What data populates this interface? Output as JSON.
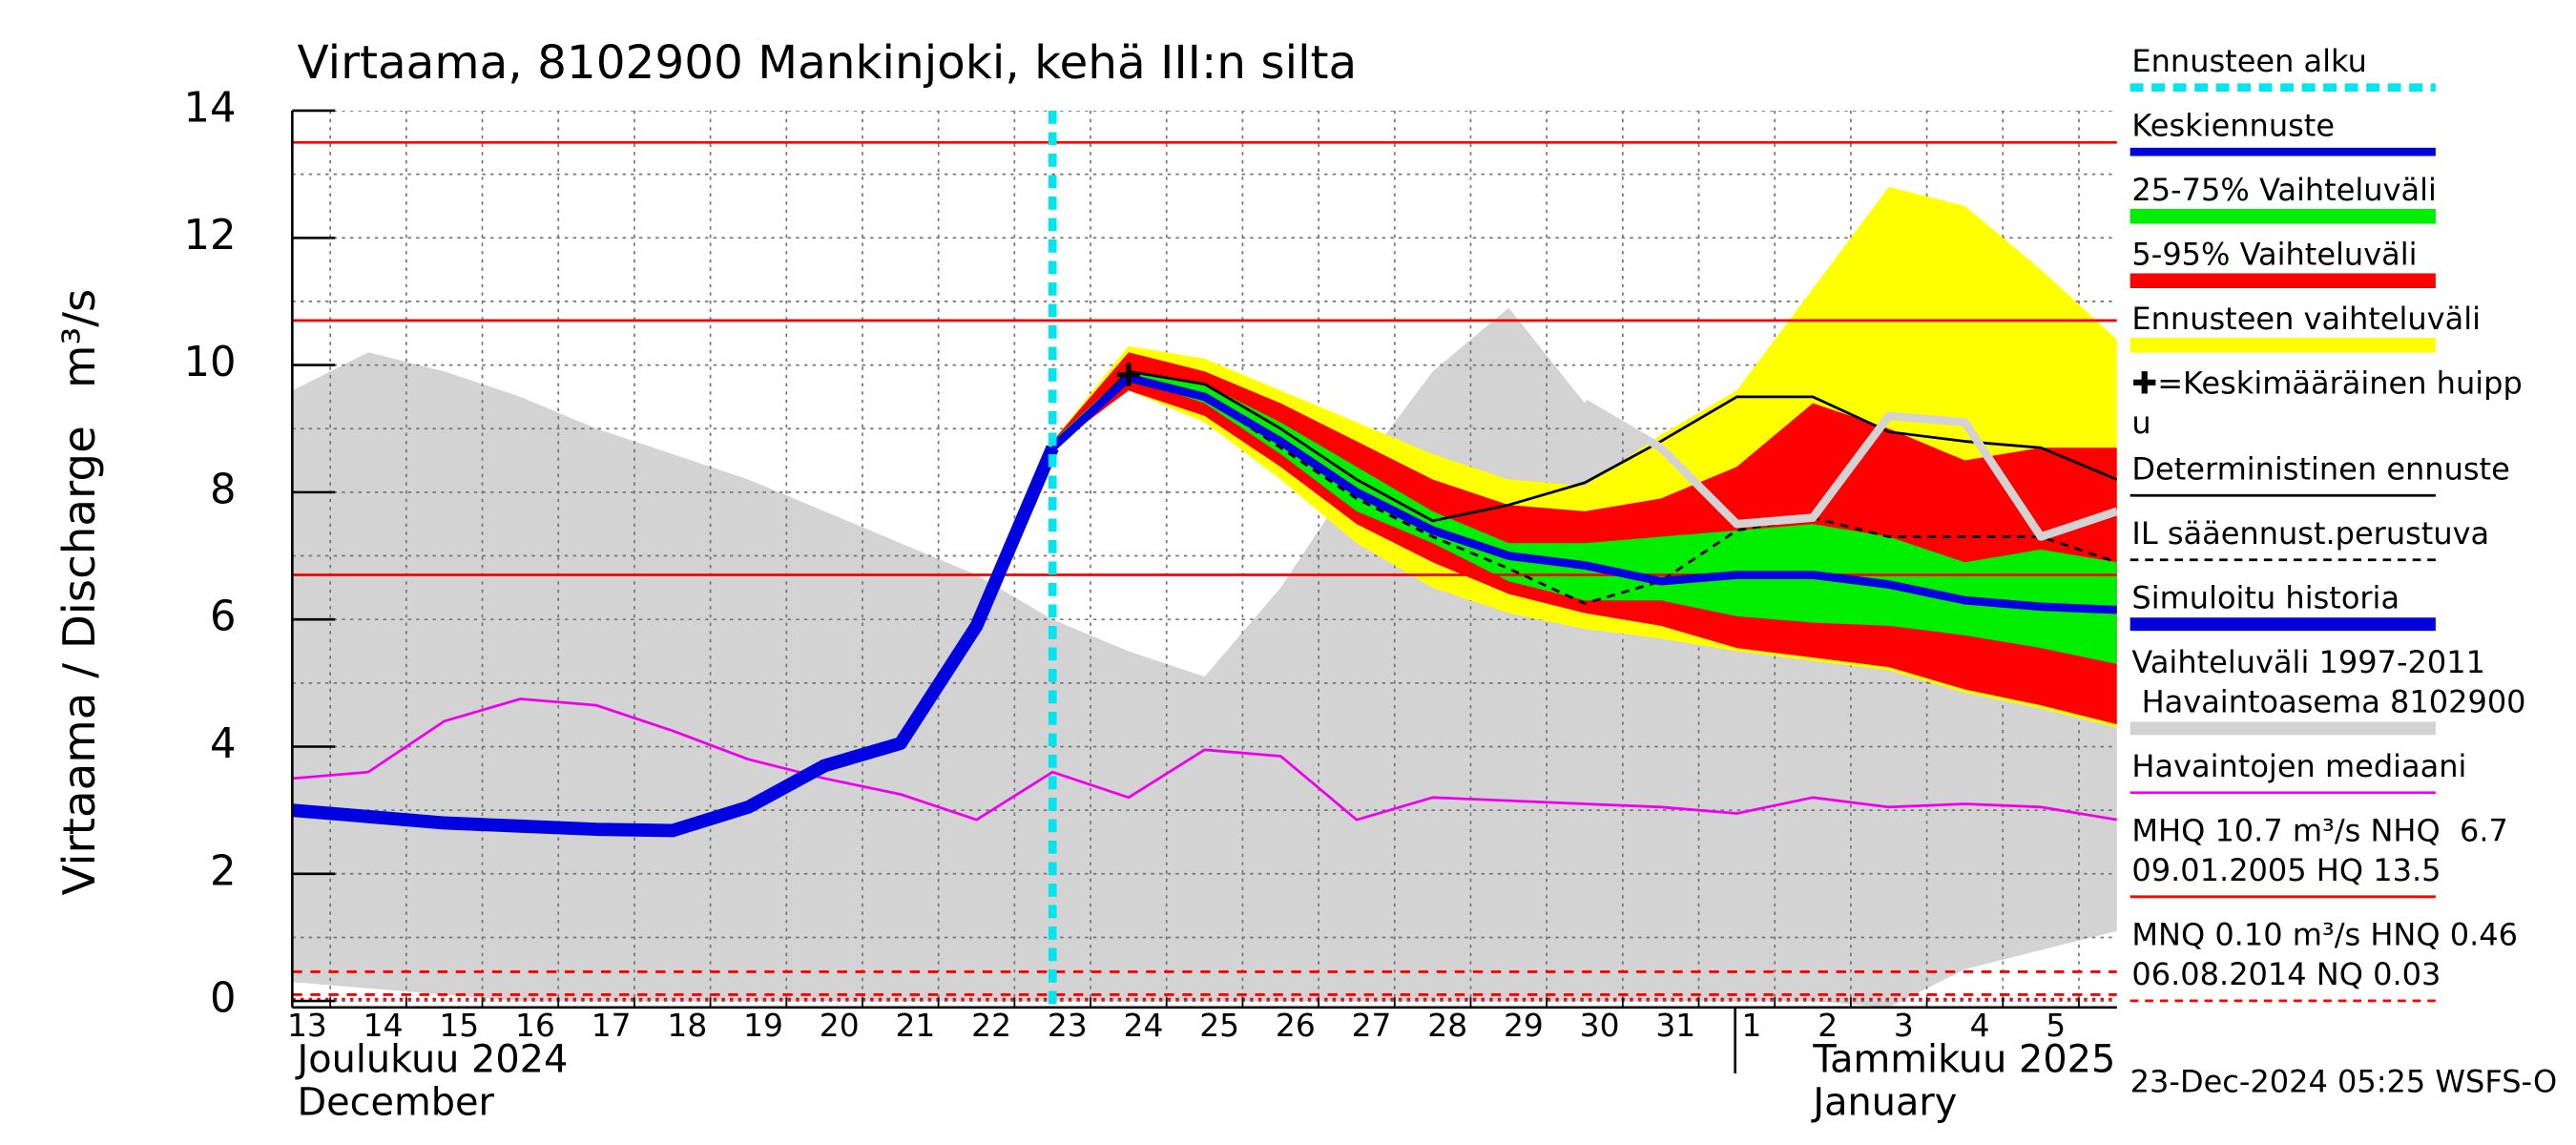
{
  "chart_data": {
    "type": "line",
    "title": "Virtaama, 8102900 Mankinjoki, kehä III:n silta",
    "y_label": "Virtaama / Discharge",
    "y_unit": "m³/s",
    "month_labels": [
      "Joulukuu  2024",
      "December",
      "Tammikuu  2025",
      "January"
    ],
    "footer": "23-Dec-2024 05:25 WSFS-O",
    "x": [
      0,
      1,
      2,
      3,
      4,
      5,
      6,
      7,
      8,
      9,
      10,
      11,
      12,
      13,
      14,
      15,
      16,
      17,
      18,
      19,
      20,
      21,
      22,
      23,
      24
    ],
    "xlim": [
      0,
      24
    ],
    "xticks": [
      {
        "value": 0,
        "label": "13"
      },
      {
        "value": 1,
        "label": "14"
      },
      {
        "value": 2,
        "label": "15"
      },
      {
        "value": 3,
        "label": "16"
      },
      {
        "value": 4,
        "label": "17"
      },
      {
        "value": 5,
        "label": "18"
      },
      {
        "value": 6,
        "label": "19"
      },
      {
        "value": 7,
        "label": "20"
      },
      {
        "value": 8,
        "label": "21"
      },
      {
        "value": 9,
        "label": "22"
      },
      {
        "value": 10,
        "label": "23"
      },
      {
        "value": 11,
        "label": "24"
      },
      {
        "value": 12,
        "label": "25"
      },
      {
        "value": 13,
        "label": "26"
      },
      {
        "value": 14,
        "label": "27"
      },
      {
        "value": 15,
        "label": "28"
      },
      {
        "value": 16,
        "label": "29"
      },
      {
        "value": 17,
        "label": "30"
      },
      {
        "value": 18,
        "label": "31"
      },
      {
        "value": 19,
        "label": "1"
      },
      {
        "value": 20,
        "label": "2"
      },
      {
        "value": 21,
        "label": "3"
      },
      {
        "value": 22,
        "label": "4"
      },
      {
        "value": 23,
        "label": "5"
      }
    ],
    "month_break_x": 19,
    "ylim": [
      -0.1,
      14
    ],
    "yticks": [
      0,
      2,
      4,
      6,
      8,
      10,
      12,
      14
    ],
    "yminor": [
      1,
      3,
      5,
      7,
      9,
      11,
      13
    ],
    "grid": true,
    "forecast_start_x": 10,
    "forecast_start_color": "#00e5ee",
    "reference_lines": [
      {
        "value": 13.5,
        "style": "solid",
        "color": "#ff0000"
      },
      {
        "value": 10.7,
        "style": "solid",
        "color": "#ff0000"
      },
      {
        "value": 6.7,
        "style": "solid",
        "color": "#ff0000"
      },
      {
        "value": 0.46,
        "style": "dashed",
        "color": "#ff0000"
      },
      {
        "value": 0.1,
        "style": "dashed",
        "color": "#ff0000"
      },
      {
        "value": 0.03,
        "style": "dotted",
        "color": "#ff0000"
      }
    ],
    "series": [
      {
        "kind": "band",
        "color": "#d3d3d3",
        "upper": [
          9.6,
          10.2,
          9.9,
          9.5,
          9.0,
          8.6,
          8.2,
          7.7,
          7.2,
          6.7,
          6.0,
          5.5,
          5.1,
          6.5,
          8.3,
          9.9,
          10.9,
          9.4,
          8.7,
          7.5,
          7.6,
          9.2,
          9.1,
          7.3,
          7.7
        ],
        "lower": [
          0.3,
          0.2,
          0.1,
          0,
          0,
          0,
          0,
          0,
          0,
          0,
          0,
          0,
          0,
          0,
          0,
          0,
          0,
          0,
          0,
          0,
          0,
          -0.1,
          0.5,
          0.8,
          1.1
        ]
      },
      {
        "kind": "band",
        "color": "#ffff00",
        "upper": [
          null,
          null,
          null,
          null,
          null,
          null,
          null,
          null,
          null,
          null,
          8.8,
          10.3,
          10.1,
          9.6,
          9.1,
          8.6,
          8.2,
          8.1,
          8.9,
          9.6,
          11.2,
          12.8,
          12.5,
          11.5,
          10.4
        ],
        "lower": [
          null,
          null,
          null,
          null,
          null,
          null,
          null,
          null,
          null,
          null,
          8.7,
          9.6,
          9.1,
          8.2,
          7.2,
          6.5,
          6.1,
          5.85,
          5.7,
          5.5,
          5.35,
          5.2,
          4.85,
          4.6,
          4.3
        ]
      },
      {
        "kind": "band",
        "color": "#ff0000",
        "upper": [
          null,
          null,
          null,
          null,
          null,
          null,
          null,
          null,
          null,
          null,
          8.8,
          10.2,
          9.9,
          9.4,
          8.8,
          8.2,
          7.8,
          7.7,
          7.9,
          8.4,
          9.4,
          9.0,
          8.5,
          8.7,
          8.7
        ],
        "lower": [
          null,
          null,
          null,
          null,
          null,
          null,
          null,
          null,
          null,
          null,
          8.7,
          9.6,
          9.2,
          8.4,
          7.5,
          6.9,
          6.4,
          6.1,
          5.9,
          5.55,
          5.4,
          5.25,
          4.9,
          4.65,
          4.35
        ]
      },
      {
        "kind": "band",
        "color": "#00ee00",
        "upper": [
          null,
          null,
          null,
          null,
          null,
          null,
          null,
          null,
          null,
          null,
          8.8,
          9.9,
          9.7,
          9.1,
          8.4,
          7.7,
          7.2,
          7.2,
          7.3,
          7.4,
          7.5,
          7.3,
          6.9,
          7.1,
          6.9
        ],
        "lower": [
          null,
          null,
          null,
          null,
          null,
          null,
          null,
          null,
          null,
          null,
          8.7,
          9.8,
          9.4,
          8.6,
          7.7,
          7.2,
          6.6,
          6.3,
          6.3,
          6.05,
          5.95,
          5.9,
          5.75,
          5.55,
          5.3
        ]
      },
      {
        "kind": "line",
        "style": "thin",
        "color": "#ee00ee",
        "values": [
          3.5,
          3.6,
          4.4,
          4.75,
          4.65,
          4.25,
          3.8,
          3.5,
          3.25,
          2.85,
          3.6,
          3.2,
          3.95,
          3.85,
          2.85,
          3.2,
          3.15,
          3.1,
          3.05,
          2.95,
          3.2,
          3.05,
          3.1,
          3.05,
          2.85
        ]
      },
      {
        "kind": "line",
        "style": "thin",
        "color": "#000000",
        "values": [
          null,
          null,
          null,
          null,
          null,
          null,
          null,
          null,
          null,
          null,
          8.7,
          9.9,
          9.7,
          9.0,
          8.2,
          7.55,
          7.8,
          8.15,
          8.8,
          9.5,
          9.5,
          8.95,
          8.8,
          8.7,
          8.2
        ]
      },
      {
        "kind": "line",
        "style": "dashed-thin",
        "color": "#000000",
        "values": [
          null,
          null,
          null,
          null,
          null,
          null,
          null,
          null,
          null,
          null,
          8.7,
          9.8,
          9.5,
          8.7,
          7.9,
          7.3,
          6.8,
          6.25,
          6.6,
          7.4,
          7.6,
          7.3,
          7.3,
          7.3,
          6.9
        ]
      },
      {
        "kind": "line",
        "style": "medium",
        "color": "#d3d3d3",
        "values": [
          null,
          null,
          null,
          null,
          null,
          null,
          null,
          null,
          null,
          null,
          null,
          null,
          null,
          null,
          null,
          null,
          null,
          9.4,
          8.7,
          7.5,
          7.6,
          9.2,
          9.1,
          7.3,
          7.7
        ]
      },
      {
        "kind": "line",
        "style": "thick",
        "color": "#0000e0",
        "values": [
          3.0,
          2.9,
          2.8,
          2.75,
          2.7,
          2.68,
          3.05,
          3.7,
          4.05,
          5.9,
          8.7,
          null,
          null,
          null,
          null,
          null,
          null,
          null,
          null,
          null,
          null,
          null,
          null,
          null,
          null
        ]
      },
      {
        "kind": "line",
        "style": "medium",
        "color": "#0000e0",
        "values": [
          null,
          null,
          null,
          null,
          null,
          null,
          null,
          null,
          null,
          null,
          8.7,
          9.8,
          9.5,
          8.8,
          8.0,
          7.4,
          7.0,
          6.85,
          6.6,
          6.7,
          6.7,
          6.55,
          6.3,
          6.2,
          6.15
        ]
      }
    ],
    "mean_peak": {
      "x": 11,
      "y": 9.85
    },
    "legend": [
      {
        "lines": [
          "Ennusteen alku"
        ],
        "color": "#00e5ee",
        "style": "dashed-thick"
      },
      {
        "lines": [
          "Keskiennuste"
        ],
        "color": "#0000e0",
        "style": "medium"
      },
      {
        "lines": [
          "25-75% Vaihteluväli"
        ],
        "color": "#00ee00",
        "style": "band"
      },
      {
        "lines": [
          "5-95% Vaihteluväli"
        ],
        "color": "#ff0000",
        "style": "band"
      },
      {
        "lines": [
          "Ennusteen vaihteluväli"
        ],
        "color": "#ffff00",
        "style": "band"
      },
      {
        "lines": [
          "✚=Keskimääräinen huipp",
          "u"
        ]
      },
      {
        "lines": [
          "Deterministinen ennuste"
        ],
        "color": "#000000",
        "style": "thin"
      },
      {
        "lines": [
          "IL sääennust.perustuva"
        ],
        "color": "#000000",
        "style": "dashed-thin"
      },
      {
        "lines": [
          "Simuloitu historia"
        ],
        "color": "#0000e0",
        "style": "thick"
      },
      {
        "lines": [
          "Vaihteluväli 1997-2011",
          " Havaintoasema 8102900"
        ],
        "color": "#d3d3d3",
        "style": "thick"
      },
      {
        "lines": [
          "Havaintojen mediaani"
        ],
        "color": "#ee00ee",
        "style": "thin"
      },
      {
        "lines": [
          "MHQ 10.7 m³/s NHQ  6.7",
          "09.01.2005 HQ 13.5"
        ],
        "color": "#ff0000",
        "style": "thin"
      },
      {
        "lines": [
          "MNQ 0.10 m³/s HNQ 0.46",
          "06.08.2014 NQ 0.03"
        ],
        "color": "#ff0000",
        "style": "dashed-thin"
      }
    ]
  }
}
